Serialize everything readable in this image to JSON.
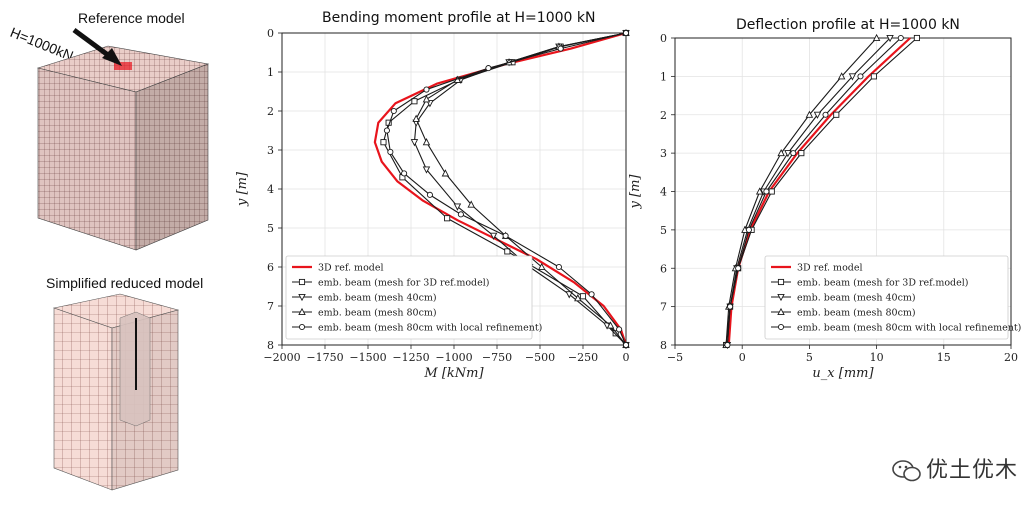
{
  "labels": {
    "reference_model": "Reference model",
    "load": "H=1000kN",
    "reduced_model": "Simplified reduced model",
    "watermark": "优土优木"
  },
  "icons": {
    "watermark": "wechat-icon"
  },
  "colors": {
    "ref_line": "#e8141c",
    "series": "#1a1a1a",
    "model_fill": "#f3d8d3",
    "model_grid": "#7a4a4a"
  },
  "chart_data": [
    {
      "type": "line",
      "title": "Bending moment profile at H=1000 kN",
      "xlabel": "M [kNm]",
      "ylabel": "y [m]",
      "xlim": [
        -2000,
        0
      ],
      "ylim": [
        8,
        0
      ],
      "xticks": [
        -2000,
        -1750,
        -1500,
        -1250,
        -1000,
        -750,
        -500,
        -250,
        0
      ],
      "xtick_labels": [
        "−2000",
        "−1750",
        "−1500",
        "−1250",
        "−1000",
        "−750",
        "−500",
        "−250",
        "0"
      ],
      "yticks": [
        0,
        1,
        2,
        3,
        4,
        5,
        6,
        7,
        8
      ],
      "ytick_labels": [
        "0",
        "1",
        "2",
        "3",
        "4",
        "5",
        "6",
        "7",
        "8"
      ],
      "grid": true,
      "legend_position": "bottom-left",
      "series": [
        {
          "name": "3D ref. model",
          "marker": "none",
          "color": "#e8141c",
          "x": [
            0,
            -320,
            -700,
            -1100,
            -1340,
            -1440,
            -1460,
            -1420,
            -1330,
            -1180,
            -980,
            -750,
            -520,
            -300,
            -130,
            -30,
            0
          ],
          "y": [
            0,
            0.4,
            0.8,
            1.3,
            1.8,
            2.3,
            2.8,
            3.3,
            3.8,
            4.3,
            4.8,
            5.3,
            5.8,
            6.4,
            7.0,
            7.6,
            8.0
          ]
        },
        {
          "name": "emb. beam (mesh for 3D ref.model)",
          "marker": "square",
          "color": "#1a1a1a",
          "x": [
            0,
            -380,
            -660,
            -970,
            -1230,
            -1380,
            -1410,
            -1300,
            -1040,
            -690,
            -250,
            -60,
            0
          ],
          "y": [
            0,
            0.35,
            0.75,
            1.2,
            1.75,
            2.3,
            2.8,
            3.7,
            4.75,
            5.6,
            6.75,
            7.7,
            8.0
          ]
        },
        {
          "name": "emb. beam (mesh 40cm)",
          "marker": "triangle-down",
          "color": "#1a1a1a",
          "x": [
            0,
            -390,
            -680,
            -960,
            -1140,
            -1220,
            -1230,
            -1160,
            -980,
            -770,
            -560,
            -330,
            -110,
            0
          ],
          "y": [
            0,
            0.35,
            0.75,
            1.2,
            1.8,
            2.3,
            2.8,
            3.5,
            4.45,
            5.2,
            6.0,
            6.7,
            7.5,
            8.0
          ]
        },
        {
          "name": "emb. beam (mesh 80cm)",
          "marker": "triangle-up",
          "color": "#1a1a1a",
          "x": [
            0,
            -390,
            -680,
            -980,
            -1160,
            -1220,
            -1160,
            -1050,
            -900,
            -700,
            -490,
            -280,
            -90,
            0
          ],
          "y": [
            0,
            0.35,
            0.75,
            1.2,
            1.7,
            2.2,
            2.8,
            3.6,
            4.4,
            5.2,
            6.0,
            6.8,
            7.5,
            8.0
          ]
        },
        {
          "name": "emb. beam (mesh 80cm with local refinement)",
          "marker": "circle",
          "color": "#1a1a1a",
          "x": [
            0,
            -380,
            -800,
            -1160,
            -1350,
            -1390,
            -1370,
            -1290,
            -1140,
            -960,
            -700,
            -390,
            -200,
            -40,
            0
          ],
          "y": [
            0,
            0.4,
            0.9,
            1.45,
            2.0,
            2.5,
            3.05,
            3.6,
            4.15,
            4.65,
            5.2,
            6.0,
            6.7,
            7.6,
            8.0
          ]
        }
      ]
    },
    {
      "type": "line",
      "title": "Deflection profile at H=1000 kN",
      "xlabel": "u_x [mm]",
      "ylabel": "y [m]",
      "xlim": [
        -5,
        20
      ],
      "ylim": [
        8,
        0
      ],
      "xticks": [
        -5,
        0,
        5,
        10,
        15,
        20
      ],
      "xtick_labels": [
        "−5",
        "0",
        "5",
        "10",
        "15",
        "20"
      ],
      "yticks": [
        0,
        1,
        2,
        3,
        4,
        5,
        6,
        7,
        8
      ],
      "ytick_labels": [
        "0",
        "1",
        "2",
        "3",
        "4",
        "5",
        "6",
        "7",
        "8"
      ],
      "grid": true,
      "legend_position": "bottom-right",
      "series": [
        {
          "name": "3D ref. model",
          "marker": "none",
          "color": "#e8141c",
          "x": [
            12.5,
            9.4,
            6.6,
            4.1,
            2.0,
            0.6,
            -0.3,
            -0.8,
            -1.0
          ],
          "y": [
            0,
            1,
            2,
            3,
            4,
            5,
            6,
            7,
            8
          ]
        },
        {
          "name": "emb. beam (mesh for 3D ref.model)",
          "marker": "square",
          "color": "#1a1a1a",
          "x": [
            13.0,
            9.8,
            7.0,
            4.4,
            2.2,
            0.7,
            -0.3,
            -0.9,
            -1.2
          ],
          "y": [
            0,
            1,
            2,
            3,
            4,
            5,
            6,
            7,
            8
          ]
        },
        {
          "name": "emb. beam (mesh 40cm)",
          "marker": "triangle-down",
          "color": "#1a1a1a",
          "x": [
            11.0,
            8.2,
            5.6,
            3.4,
            1.6,
            0.4,
            -0.4,
            -0.9,
            -1.1
          ],
          "y": [
            0,
            1,
            2,
            3,
            4,
            5,
            6,
            7,
            8
          ]
        },
        {
          "name": "emb. beam (mesh 80cm)",
          "marker": "triangle-up",
          "color": "#1a1a1a",
          "x": [
            10.0,
            7.4,
            5.0,
            2.9,
            1.3,
            0.2,
            -0.5,
            -1.0,
            -1.2
          ],
          "y": [
            0,
            1,
            2,
            3,
            4,
            5,
            6,
            7,
            8
          ]
        },
        {
          "name": "emb. beam (mesh 80cm with local refinement)",
          "marker": "circle",
          "color": "#1a1a1a",
          "x": [
            11.8,
            8.8,
            6.2,
            3.8,
            1.8,
            0.5,
            -0.3,
            -0.9,
            -1.1
          ],
          "y": [
            0,
            1,
            2,
            3,
            4,
            5,
            6,
            7,
            8
          ]
        }
      ]
    }
  ]
}
